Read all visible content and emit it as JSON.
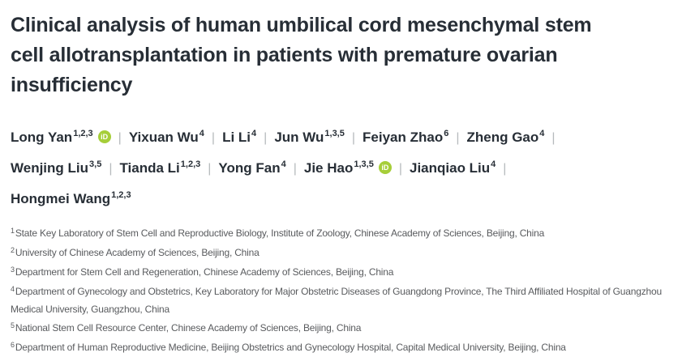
{
  "article": {
    "title": "Clinical analysis of human umbilical cord mesenchymal stem cell allotransplantation in patients with premature ovarian insufficiency",
    "title_lines": [
      "Clinical analysis of human umbilical cord mesenchymal stem",
      "cell allotransplantation in patients with premature ovarian",
      "insufficiency"
    ]
  },
  "authors": {
    "separator": "|",
    "orcid_label": "iD",
    "rows": [
      [
        {
          "name": "Long Yan",
          "sup": "1,2,3",
          "orcid": true
        },
        {
          "name": "Yixuan Wu",
          "sup": "4",
          "orcid": false
        },
        {
          "name": "Li Li",
          "sup": "4",
          "orcid": false
        },
        {
          "name": "Jun Wu",
          "sup": "1,3,5",
          "orcid": false
        },
        {
          "name": "Feiyan Zhao",
          "sup": "6",
          "orcid": false
        },
        {
          "name": "Zheng Gao",
          "sup": "4",
          "orcid": false
        }
      ],
      [
        {
          "name": "Wenjing Liu",
          "sup": "3,5",
          "orcid": false
        },
        {
          "name": "Tianda Li",
          "sup": "1,2,3",
          "orcid": false
        },
        {
          "name": "Yong Fan",
          "sup": "4",
          "orcid": false
        },
        {
          "name": "Jie Hao",
          "sup": "1,3,5",
          "orcid": true
        },
        {
          "name": "Jianqiao Liu",
          "sup": "4",
          "orcid": false
        }
      ],
      [
        {
          "name": "Hongmei Wang",
          "sup": "1,2,3",
          "orcid": false
        }
      ]
    ]
  },
  "affiliations": [
    {
      "sup": "1",
      "text": "State Key Laboratory of Stem Cell and Reproductive Biology, Institute of Zoology, Chinese Academy of Sciences, Beijing, China"
    },
    {
      "sup": "2",
      "text": "University of Chinese Academy of Sciences, Beijing, China"
    },
    {
      "sup": "3",
      "text": "Department for Stem Cell and Regeneration, Chinese Academy of Sciences, Beijing, China"
    },
    {
      "sup": "4",
      "text": "Department of Gynecology and Obstetrics, Key Laboratory for Major Obstetric Diseases of Guangdong Province, The Third Affiliated Hospital of Guangzhou Medical University, Guangzhou, China"
    },
    {
      "sup": "5",
      "text": "National Stem Cell Resource Center, Chinese Academy of Sciences, Beijing, China"
    },
    {
      "sup": "6",
      "text": "Department of Human Reproductive Medicine, Beijing Obstetrics and Gynecology Hospital, Capital Medical University, Beijing, China"
    }
  ],
  "colors": {
    "heading": "#272e36",
    "affiliation": "#595b5e",
    "separator": "#b6babd",
    "orcid_green": "#a6ce39",
    "background": "#ffffff"
  }
}
